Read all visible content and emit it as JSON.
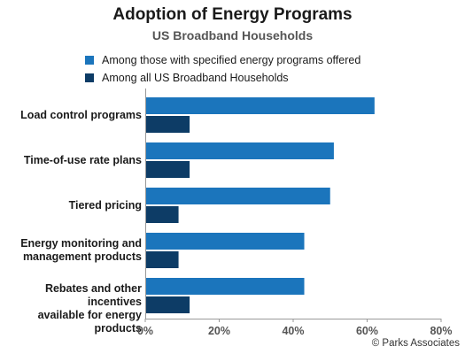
{
  "chart_data": {
    "type": "bar",
    "orientation": "horizontal",
    "title": "Adoption of Energy Programs",
    "subtitle": "US Broadband Households",
    "categories": [
      [
        "Load control programs"
      ],
      [
        "Time-of-use rate plans"
      ],
      [
        "Tiered pricing"
      ],
      [
        "Energy monitoring and",
        "management products"
      ],
      [
        "Rebates and other incentives",
        "available for energy products"
      ]
    ],
    "series": [
      {
        "name": "Among those with specified energy programs offered",
        "color": "#1b75bc",
        "values": [
          62,
          51,
          50,
          43,
          43
        ]
      },
      {
        "name": "Among all US Broadband Households",
        "color": "#0d3c66",
        "values": [
          12,
          12,
          9,
          9,
          12
        ]
      }
    ],
    "xlim": [
      0,
      80
    ],
    "xticks": [
      "0%",
      "20%",
      "40%",
      "60%",
      "80%"
    ],
    "grid": false,
    "legend": "top"
  },
  "footer": {
    "copyright": "© Parks Associates"
  }
}
